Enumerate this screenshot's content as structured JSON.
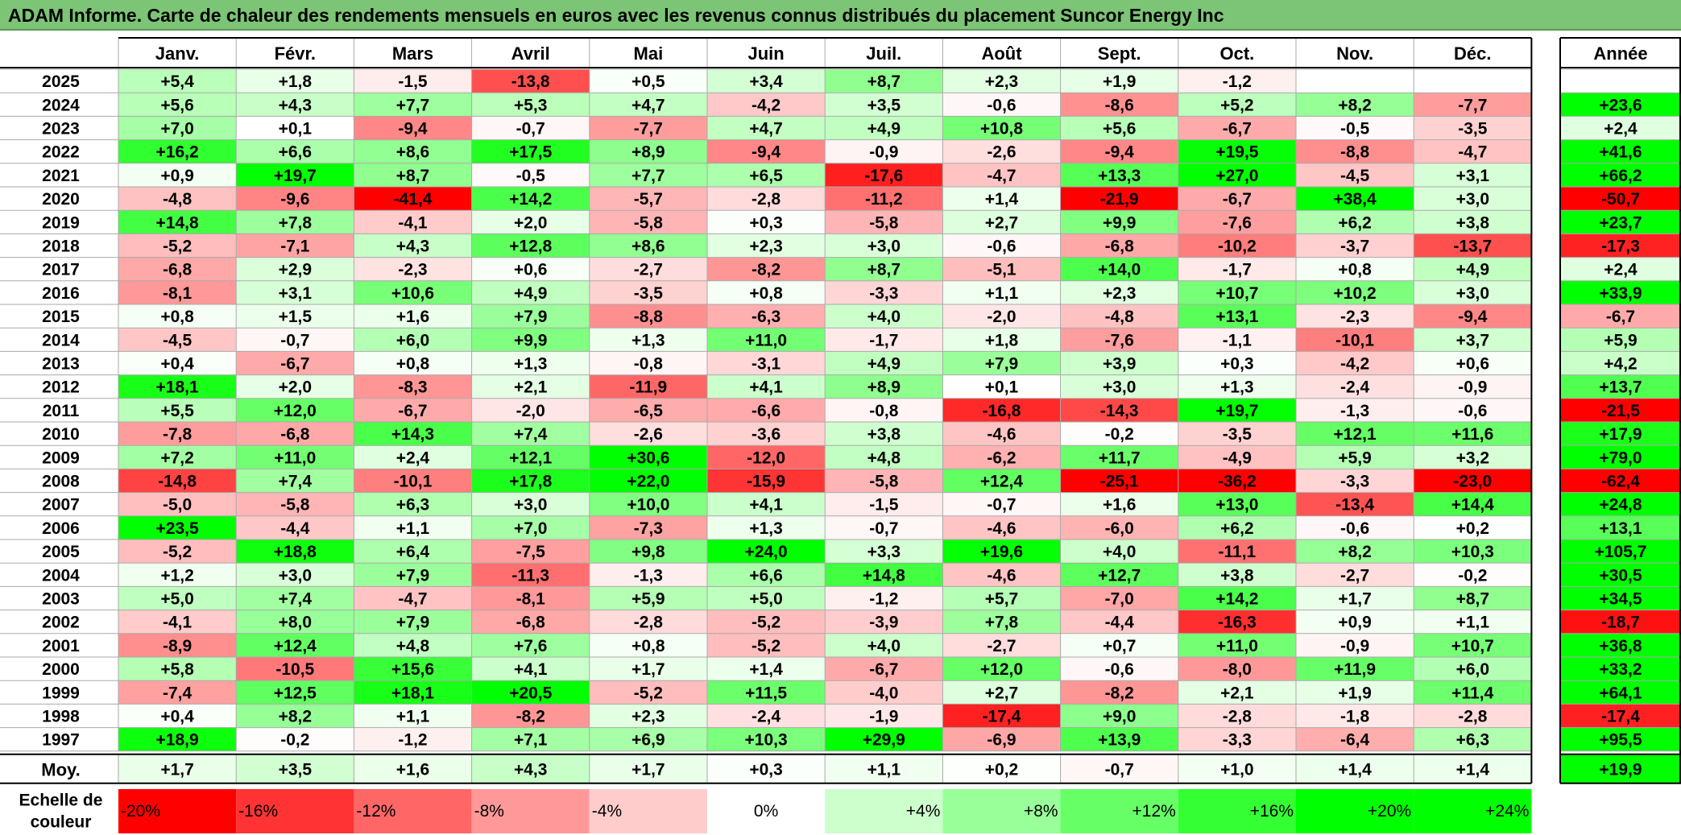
{
  "title": "ADAM Informe. Carte de chaleur des rendements mensuels en euros avec les revenus connus distribués du placement Suncor Energy Inc",
  "chart_data": {
    "type": "heatmap",
    "months": [
      "Janv.",
      "Févr.",
      "Mars",
      "Avril",
      "Mai",
      "Juin",
      "Juil.",
      "Août",
      "Sept.",
      "Oct.",
      "Nov.",
      "Déc."
    ],
    "year_header": "Année",
    "rows": [
      {
        "year": "2025",
        "values": [
          "+5,4",
          "+1,8",
          "-1,5",
          "-13,8",
          "+0,5",
          "+3,4",
          "+8,7",
          "+2,3",
          "+1,9",
          "-1,2",
          "",
          ""
        ],
        "annual": ""
      },
      {
        "year": "2024",
        "values": [
          "+5,6",
          "+4,3",
          "+7,7",
          "+5,3",
          "+4,7",
          "-4,2",
          "+3,5",
          "-0,6",
          "-8,6",
          "+5,2",
          "+8,2",
          "-7,7"
        ],
        "annual": "+23,6"
      },
      {
        "year": "2023",
        "values": [
          "+7,0",
          "+0,1",
          "-9,4",
          "-0,7",
          "-7,7",
          "+4,7",
          "+4,9",
          "+10,8",
          "+5,6",
          "-6,7",
          "-0,5",
          "-3,5"
        ],
        "annual": "+2,4"
      },
      {
        "year": "2022",
        "values": [
          "+16,2",
          "+6,6",
          "+8,6",
          "+17,5",
          "+8,9",
          "-9,4",
          "-0,9",
          "-2,6",
          "-9,4",
          "+19,5",
          "-8,8",
          "-4,7"
        ],
        "annual": "+41,6"
      },
      {
        "year": "2021",
        "values": [
          "+0,9",
          "+19,7",
          "+8,7",
          "-0,5",
          "+7,7",
          "+6,5",
          "-17,6",
          "-4,7",
          "+13,3",
          "+27,0",
          "-4,5",
          "+3,1"
        ],
        "annual": "+66,2"
      },
      {
        "year": "2020",
        "values": [
          "-4,8",
          "-9,6",
          "-41,4",
          "+14,2",
          "-5,7",
          "-2,8",
          "-11,2",
          "+1,4",
          "-21,9",
          "-6,7",
          "+38,4",
          "+3,0"
        ],
        "annual": "-50,7"
      },
      {
        "year": "2019",
        "values": [
          "+14,8",
          "+7,8",
          "-4,1",
          "+2,0",
          "-5,8",
          "+0,3",
          "-5,8",
          "+2,7",
          "+9,9",
          "-7,6",
          "+6,2",
          "+3,8"
        ],
        "annual": "+23,7"
      },
      {
        "year": "2018",
        "values": [
          "-5,2",
          "-7,1",
          "+4,3",
          "+12,8",
          "+8,6",
          "+2,3",
          "+3,0",
          "-0,6",
          "-6,8",
          "-10,2",
          "-3,7",
          "-13,7"
        ],
        "annual": "-17,3"
      },
      {
        "year": "2017",
        "values": [
          "-6,8",
          "+2,9",
          "-2,3",
          "+0,6",
          "-2,7",
          "-8,2",
          "+8,7",
          "-5,1",
          "+14,0",
          "-1,7",
          "+0,8",
          "+4,9"
        ],
        "annual": "+2,4"
      },
      {
        "year": "2016",
        "values": [
          "-8,1",
          "+3,1",
          "+10,6",
          "+4,9",
          "-3,5",
          "+0,8",
          "-3,3",
          "+1,1",
          "+2,3",
          "+10,7",
          "+10,2",
          "+3,0"
        ],
        "annual": "+33,9"
      },
      {
        "year": "2015",
        "values": [
          "+0,8",
          "+1,5",
          "+1,6",
          "+7,9",
          "-8,8",
          "-6,3",
          "+4,0",
          "-2,0",
          "-4,8",
          "+13,1",
          "-2,3",
          "-9,4"
        ],
        "annual": "-6,7"
      },
      {
        "year": "2014",
        "values": [
          "-4,5",
          "-0,7",
          "+6,0",
          "+9,9",
          "+1,3",
          "+11,0",
          "-1,7",
          "+1,8",
          "-7,6",
          "-1,1",
          "-10,1",
          "+3,7"
        ],
        "annual": "+5,9"
      },
      {
        "year": "2013",
        "values": [
          "+0,4",
          "-6,7",
          "+0,8",
          "+1,3",
          "-0,8",
          "-3,1",
          "+4,9",
          "+7,9",
          "+3,9",
          "+0,3",
          "-4,2",
          "+0,6"
        ],
        "annual": "+4,2"
      },
      {
        "year": "2012",
        "values": [
          "+18,1",
          "+2,0",
          "-8,3",
          "+2,1",
          "-11,9",
          "+4,1",
          "+8,9",
          "+0,1",
          "+3,0",
          "+1,3",
          "-2,4",
          "-0,9"
        ],
        "annual": "+13,7"
      },
      {
        "year": "2011",
        "values": [
          "+5,5",
          "+12,0",
          "-6,7",
          "-2,0",
          "-6,5",
          "-6,6",
          "-0,8",
          "-16,8",
          "-14,3",
          "+19,7",
          "-1,3",
          "-0,6"
        ],
        "annual": "-21,5"
      },
      {
        "year": "2010",
        "values": [
          "-7,8",
          "-6,8",
          "+14,3",
          "+7,4",
          "-2,6",
          "-3,6",
          "+3,8",
          "-4,6",
          "-0,2",
          "-3,5",
          "+12,1",
          "+11,6"
        ],
        "annual": "+17,9"
      },
      {
        "year": "2009",
        "values": [
          "+7,2",
          "+11,0",
          "+2,4",
          "+12,1",
          "+30,6",
          "-12,0",
          "+4,8",
          "-6,2",
          "+11,7",
          "-4,9",
          "+5,9",
          "+3,2"
        ],
        "annual": "+79,0"
      },
      {
        "year": "2008",
        "values": [
          "-14,8",
          "+7,4",
          "-10,1",
          "+17,8",
          "+22,0",
          "-15,9",
          "-5,8",
          "+12,4",
          "-25,1",
          "-36,2",
          "-3,3",
          "-23,0"
        ],
        "annual": "-62,4"
      },
      {
        "year": "2007",
        "values": [
          "-5,0",
          "-5,8",
          "+6,3",
          "+3,0",
          "+10,0",
          "+4,1",
          "-1,5",
          "-0,7",
          "+1,6",
          "+13,0",
          "-13,4",
          "+14,4"
        ],
        "annual": "+24,8"
      },
      {
        "year": "2006",
        "values": [
          "+23,5",
          "-4,4",
          "+1,1",
          "+7,0",
          "-7,3",
          "+1,3",
          "-0,7",
          "-4,6",
          "-6,0",
          "+6,2",
          "-0,6",
          "+0,2"
        ],
        "annual": "+13,1"
      },
      {
        "year": "2005",
        "values": [
          "-5,2",
          "+18,8",
          "+6,4",
          "-7,5",
          "+9,8",
          "+24,0",
          "+3,3",
          "+19,6",
          "+4,0",
          "-11,1",
          "+8,2",
          "+10,3"
        ],
        "annual": "+105,7"
      },
      {
        "year": "2004",
        "values": [
          "+1,2",
          "+3,0",
          "+7,9",
          "-11,3",
          "-1,3",
          "+6,6",
          "+14,8",
          "-4,6",
          "+12,7",
          "+3,8",
          "-2,7",
          "-0,2"
        ],
        "annual": "+30,5"
      },
      {
        "year": "2003",
        "values": [
          "+5,0",
          "+7,4",
          "-4,7",
          "-8,1",
          "+5,9",
          "+5,0",
          "-1,2",
          "+5,7",
          "-7,0",
          "+14,2",
          "+1,7",
          "+8,7"
        ],
        "annual": "+34,5"
      },
      {
        "year": "2002",
        "values": [
          "-4,1",
          "+8,0",
          "+7,9",
          "-6,8",
          "-2,8",
          "-5,2",
          "-3,9",
          "+7,8",
          "-4,4",
          "-16,3",
          "+0,9",
          "+1,1"
        ],
        "annual": "-18,7"
      },
      {
        "year": "2001",
        "values": [
          "-8,9",
          "+12,4",
          "+4,8",
          "+7,6",
          "+0,8",
          "-5,2",
          "+4,0",
          "-2,7",
          "+0,7",
          "+11,0",
          "-0,9",
          "+10,7"
        ],
        "annual": "+36,8"
      },
      {
        "year": "2000",
        "values": [
          "+5,8",
          "-10,5",
          "+15,6",
          "+4,1",
          "+1,7",
          "+1,4",
          "-6,7",
          "+12,0",
          "-0,6",
          "-8,0",
          "+11,9",
          "+6,0"
        ],
        "annual": "+33,2"
      },
      {
        "year": "1999",
        "values": [
          "-7,4",
          "+12,5",
          "+18,1",
          "+20,5",
          "-5,2",
          "+11,5",
          "-4,0",
          "+2,7",
          "-8,2",
          "+2,1",
          "+1,9",
          "+11,4"
        ],
        "annual": "+64,1"
      },
      {
        "year": "1998",
        "values": [
          "+0,4",
          "+8,2",
          "+1,1",
          "-8,2",
          "+2,3",
          "-2,4",
          "-1,9",
          "-17,4",
          "+9,0",
          "-2,8",
          "-1,8",
          "-2,8"
        ],
        "annual": "-17,4"
      },
      {
        "year": "1997",
        "values": [
          "+18,9",
          "-0,2",
          "-1,2",
          "+7,1",
          "+6,9",
          "+10,3",
          "+29,9",
          "-6,9",
          "+13,9",
          "-3,3",
          "-6,4",
          "+6,3"
        ],
        "annual": "+95,5"
      }
    ],
    "average": {
      "label": "Moy.",
      "values": [
        "+1,7",
        "+3,5",
        "+1,6",
        "+4,3",
        "+1,7",
        "+0,3",
        "+1,1",
        "+0,2",
        "-0,7",
        "+1,0",
        "+1,4",
        "+1,4"
      ],
      "annual": "+19,9"
    },
    "scale": {
      "label_line1": "Echelle de",
      "label_line2": "couleur",
      "stops": [
        {
          "label": "-20%",
          "value": -20
        },
        {
          "label": "-16%",
          "value": -16
        },
        {
          "label": "-12%",
          "value": -12
        },
        {
          "label": "-8%",
          "value": -8
        },
        {
          "label": "-4%",
          "value": -4
        },
        {
          "label": "0%",
          "value": 0
        },
        {
          "label": "+4%",
          "value": 4
        },
        {
          "label": "+8%",
          "value": 8
        },
        {
          "label": "+12%",
          "value": 12
        },
        {
          "label": "+16%",
          "value": 16
        },
        {
          "label": "+20%",
          "value": 20
        },
        {
          "label": "+24%",
          "value": 24
        }
      ]
    },
    "colors": {
      "negative": "#ff0000",
      "positive": "#00ff00",
      "neutral": "#ffffff",
      "title_bar": "#7cc576"
    }
  }
}
